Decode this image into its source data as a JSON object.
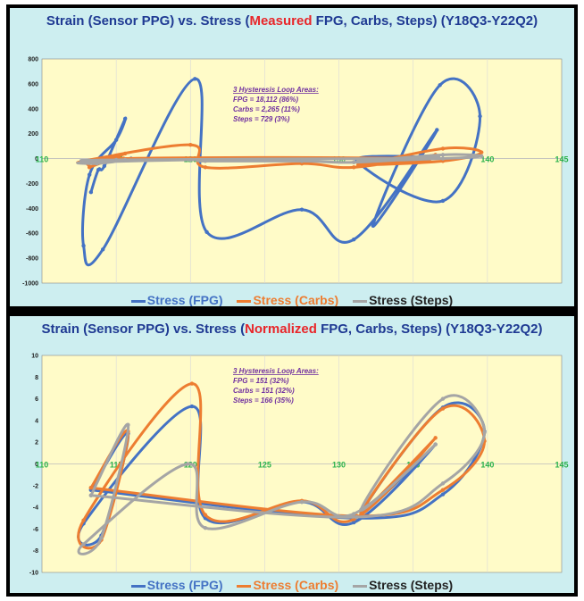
{
  "chart_data": [
    {
      "type": "line",
      "title_prefix": "Strain (Sensor PPG) vs. Stress (",
      "title_highlight": "Measured",
      "title_suffix": " FPG, Carbs, Steps)  (Y18Q3-Y22Q2)",
      "xlim": [
        110,
        145
      ],
      "ylim": [
        -1000,
        800
      ],
      "xticks": [
        110,
        115,
        120,
        125,
        130,
        135,
        140,
        145
      ],
      "yticks": [
        -1000,
        -800,
        -600,
        -400,
        -200,
        0,
        200,
        400,
        600,
        800
      ],
      "xtick_labels": [
        "110",
        "115",
        "120",
        "125",
        "130",
        "135",
        "140",
        "145"
      ],
      "ytick_labels": [
        "-1000",
        "-800",
        "-600",
        "-400",
        "-200",
        "0",
        "200",
        "400",
        "600",
        "800"
      ],
      "annotation": {
        "heading": "3 Hysteresis Loop Areas:",
        "lines": [
          "FPG = 18,112 (86%)",
          "Carbs = 2,265 (11%)",
          "Steps = 729 (3%)"
        ]
      },
      "legend": [
        "Stress (FPG)",
        "Stress (Carbs)",
        "Stress (Steps)"
      ],
      "series": [
        {
          "name": "Stress (FPG)",
          "color": "#4472c4",
          "points": [
            [
              113.3,
              -270
            ],
            [
              113.8,
              -90
            ],
            [
              114.2,
              -60
            ],
            [
              115.6,
              320
            ],
            [
              115,
              150
            ],
            [
              113.2,
              -130
            ],
            [
              112.8,
              -700
            ],
            [
              114.1,
              -730
            ],
            [
              120.3,
              640
            ],
            [
              121.1,
              -590
            ],
            [
              127.5,
              -410
            ],
            [
              131,
              -650
            ],
            [
              136.6,
              230
            ],
            [
              132.3,
              -540
            ],
            [
              136.8,
              590
            ],
            [
              139.5,
              340
            ],
            [
              137,
              -340
            ],
            [
              131.2,
              -10
            ],
            [
              136,
              0
            ],
            [
              116,
              0
            ],
            [
              113.8,
              -30
            ]
          ]
        },
        {
          "name": "Stress (Carbs)",
          "color": "#ed7d31",
          "points": [
            [
              113.2,
              -70
            ],
            [
              115.6,
              40
            ],
            [
              113.7,
              -20
            ],
            [
              112.8,
              -20
            ],
            [
              120,
              110
            ],
            [
              121,
              -70
            ],
            [
              127.5,
              -40
            ],
            [
              131,
              -70
            ],
            [
              136.5,
              30
            ],
            [
              131.5,
              -60
            ],
            [
              137,
              80
            ],
            [
              139.6,
              50
            ],
            [
              137,
              -20
            ],
            [
              131.3,
              -50
            ],
            [
              135.5,
              0
            ],
            [
              115.5,
              0
            ],
            [
              113.2,
              -70
            ]
          ]
        },
        {
          "name": "Stress (Steps)",
          "color": "#a5a5a5",
          "points": [
            [
              113,
              -20
            ],
            [
              115.6,
              -10
            ],
            [
              113.7,
              -40
            ],
            [
              112.8,
              -30
            ],
            [
              120,
              -10
            ],
            [
              121,
              -20
            ],
            [
              127.5,
              -20
            ],
            [
              131,
              -30
            ],
            [
              136.7,
              10
            ],
            [
              132,
              -20
            ],
            [
              137,
              30
            ],
            [
              139.6,
              20
            ],
            [
              137,
              0
            ],
            [
              131.3,
              -20
            ],
            [
              135.5,
              0
            ],
            [
              115,
              -10
            ],
            [
              113,
              -20
            ]
          ]
        }
      ]
    },
    {
      "type": "line",
      "title_prefix": "Strain (Sensor PPG) vs. Stress (",
      "title_highlight": "Normalized",
      "title_suffix": " FPG, Carbs, Steps)  (Y18Q3-Y22Q2)",
      "xlim": [
        110,
        145
      ],
      "ylim": [
        -10,
        10
      ],
      "xticks": [
        110,
        115,
        120,
        125,
        130,
        135,
        140,
        145
      ],
      "yticks": [
        -10,
        -8,
        -6,
        -4,
        -2,
        0,
        2,
        4,
        6,
        8,
        10
      ],
      "xtick_labels": [
        "110",
        "115",
        "120",
        "125",
        "130",
        "135",
        "140",
        "145"
      ],
      "ytick_labels": [
        "-10",
        "-8",
        "-6",
        "-4",
        "-2",
        "0",
        "2",
        "4",
        "6",
        "8",
        "10"
      ],
      "annotation": {
        "heading": "3 Hysteresis Loop Areas:",
        "lines": [
          "FPG = 151 (32%)",
          "Carbs = 151 (32%)",
          "Steps = 166 (35%)"
        ]
      },
      "legend": [
        "Stress (FPG)",
        "Stress (Carbs)",
        "Stress (Steps)"
      ],
      "series": [
        {
          "name": "Stress (FPG)",
          "color": "#4472c4",
          "points": [
            [
              113.3,
              -2.4
            ],
            [
              115.8,
              2.8
            ],
            [
              114,
              -6.6
            ],
            [
              112.8,
              -5.5
            ],
            [
              120.1,
              5.3
            ],
            [
              121,
              -5
            ],
            [
              127.5,
              -3.5
            ],
            [
              131,
              -5.4
            ],
            [
              136.5,
              1.8
            ],
            [
              131.5,
              -4.6
            ],
            [
              137,
              5.2
            ],
            [
              139.8,
              3
            ],
            [
              137,
              -2.8
            ],
            [
              131.2,
              -5
            ],
            [
              113.3,
              -2.4
            ]
          ]
        },
        {
          "name": "Stress (Carbs)",
          "color": "#ed7d31",
          "points": [
            [
              113.3,
              -2.2
            ],
            [
              115.8,
              3
            ],
            [
              114,
              -7
            ],
            [
              112.8,
              -5.2
            ],
            [
              120.1,
              7.4
            ],
            [
              121,
              -4.7
            ],
            [
              127.5,
              -3.4
            ],
            [
              131,
              -5.1
            ],
            [
              136.5,
              2.4
            ],
            [
              131.5,
              -4.5
            ],
            [
              137,
              5.1
            ],
            [
              139.8,
              2.1
            ],
            [
              137,
              -2.4
            ],
            [
              131.2,
              -4.8
            ],
            [
              113.3,
              -2.2
            ]
          ]
        },
        {
          "name": "Stress (Steps)",
          "color": "#a5a5a5",
          "points": [
            [
              113.3,
              -2.9
            ],
            [
              115.8,
              3.6
            ],
            [
              114,
              -6.8
            ],
            [
              112.8,
              -7.4
            ],
            [
              119.8,
              0
            ],
            [
              121,
              -5.9
            ],
            [
              127.5,
              -3.5
            ],
            [
              131,
              -4.6
            ],
            [
              136.5,
              1.8
            ],
            [
              131.5,
              -4.2
            ],
            [
              137,
              6
            ],
            [
              139.8,
              2.9
            ],
            [
              137,
              -1.8
            ],
            [
              131.2,
              -4.9
            ],
            [
              113.3,
              -2.9
            ]
          ]
        }
      ]
    }
  ]
}
